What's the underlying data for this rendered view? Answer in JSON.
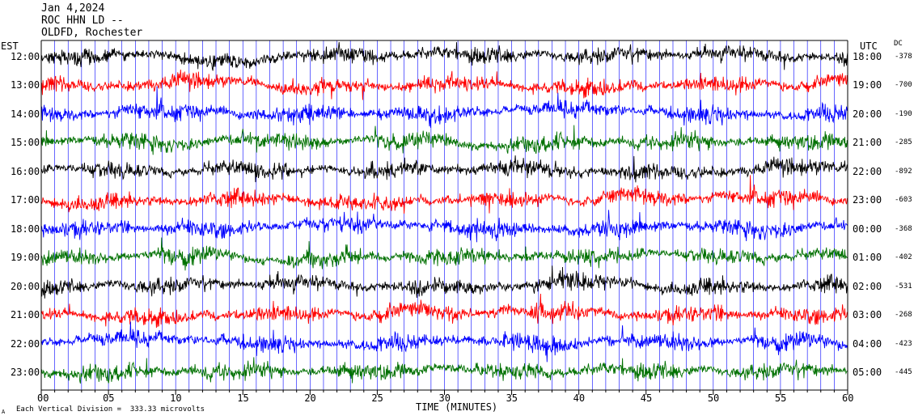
{
  "header": {
    "line1": "Jan 4,2024",
    "line2": "ROC HHN LD --",
    "line3": "OLDFD, Rochester",
    "left_tz": "EST",
    "right_tz": "UTC",
    "dc_label": "DC"
  },
  "footer": {
    "scale_note": "Each Vertical Division =  333.33 microvolts",
    "corner_mark": "A"
  },
  "colors": {
    "cycle": [
      "#000000",
      "#ff0000",
      "#0000ff",
      "#007000"
    ],
    "frame": "#000000",
    "vgrid": "#0000ff"
  },
  "chart_data": {
    "type": "line",
    "title": "Jan 4,2024 ROC HHN LD -- OLDFD, Rochester",
    "xlabel": "TIME (MINUTES)",
    "ylabel": "",
    "xlim": [
      0,
      60
    ],
    "x_ticks": [
      "00",
      "05",
      "10",
      "15",
      "20",
      "25",
      "30",
      "35",
      "40",
      "45",
      "50",
      "55",
      "60"
    ],
    "grid": true,
    "series": [
      {
        "est": "12:00",
        "utc": "18:00",
        "dc": "-378",
        "color": "#000000"
      },
      {
        "est": "13:00",
        "utc": "19:00",
        "dc": "-700",
        "color": "#ff0000"
      },
      {
        "est": "14:00",
        "utc": "20:00",
        "dc": "-190",
        "color": "#0000ff"
      },
      {
        "est": "15:00",
        "utc": "21:00",
        "dc": "-285",
        "color": "#007000"
      },
      {
        "est": "16:00",
        "utc": "22:00",
        "dc": "-892",
        "color": "#000000"
      },
      {
        "est": "17:00",
        "utc": "23:00",
        "dc": "-603",
        "color": "#ff0000"
      },
      {
        "est": "18:00",
        "utc": "00:00",
        "dc": "-368",
        "color": "#0000ff"
      },
      {
        "est": "19:00",
        "utc": "01:00",
        "dc": "-402",
        "color": "#007000"
      },
      {
        "est": "20:00",
        "utc": "02:00",
        "dc": "-531",
        "color": "#000000"
      },
      {
        "est": "21:00",
        "utc": "03:00",
        "dc": "-268",
        "color": "#ff0000"
      },
      {
        "est": "22:00",
        "utc": "04:00",
        "dc": "-423",
        "color": "#0000ff"
      },
      {
        "est": "23:00",
        "utc": "05:00",
        "dc": "-445",
        "color": "#007000"
      }
    ]
  }
}
